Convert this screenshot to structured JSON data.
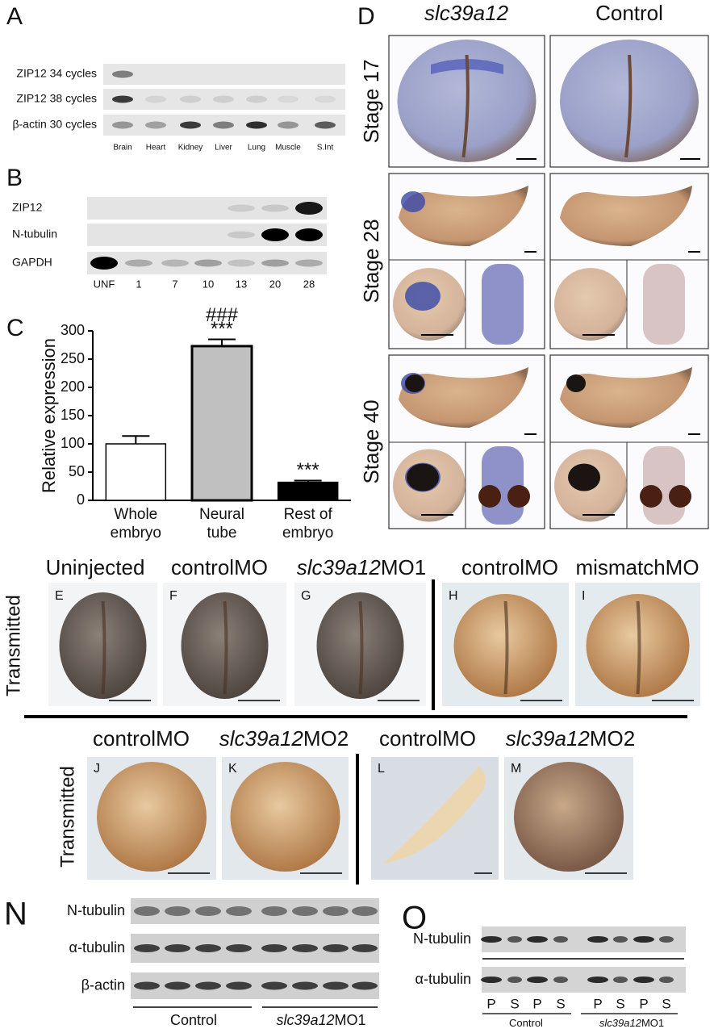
{
  "panel_a": {
    "label": "A",
    "rows": [
      "ZIP12 34 cycles",
      "ZIP12 38 cycles",
      "β-actin 30 cycles"
    ],
    "lanes": [
      "Brain",
      "Heart",
      "Kidney",
      "Liver",
      "Lung",
      "Muscle",
      "S.Int"
    ]
  },
  "panel_b": {
    "label": "B",
    "rows": [
      "ZIP12",
      "N-tubulin",
      "GAPDH"
    ],
    "lanes": [
      "UNF",
      "1",
      "7",
      "10",
      "13",
      "20",
      "28"
    ]
  },
  "chart_data": {
    "type": "bar",
    "label": "C",
    "ylabel": "Relative expression",
    "categories": [
      "Whole embryo",
      "Neural tube",
      "Rest of embryo"
    ],
    "values": [
      100,
      273,
      32
    ],
    "errors": [
      14,
      12,
      3
    ],
    "colors": [
      "#ffffff",
      "#c0c0c0",
      "#000000"
    ],
    "annotations": [
      null,
      [
        "###",
        "***"
      ],
      [
        "***"
      ]
    ],
    "ylim": [
      0,
      300
    ],
    "yticks": [
      0,
      50,
      100,
      150,
      200,
      250,
      300
    ]
  },
  "panel_d": {
    "label": "D",
    "columns": [
      {
        "italic": "slc39a12"
      },
      {
        "text": "Control"
      }
    ],
    "rows": [
      "Stage 17",
      "Stage 28",
      "Stage 40"
    ]
  },
  "panel_e_i": {
    "row_label": "Transmitted",
    "panels": [
      "E",
      "F",
      "G",
      "H",
      "I"
    ],
    "headers": [
      {
        "text": "Uninjected"
      },
      {
        "text": "controlMO"
      },
      {
        "italic": "slc39a12",
        "text": "MO1"
      },
      {
        "text": "controlMO"
      },
      {
        "text": "mismatchMO"
      }
    ]
  },
  "panel_j_m": {
    "row_label": "Transmitted",
    "panels": [
      "J",
      "K",
      "L",
      "M"
    ],
    "headers": [
      {
        "text": "controlMO"
      },
      {
        "italic": "slc39a12",
        "text": "MO2"
      },
      {
        "text": "controlMO"
      },
      {
        "italic": "slc39a12",
        "text": "MO2"
      }
    ]
  },
  "panel_n": {
    "label": "N",
    "rows": [
      "N-tubulin",
      "α-tubulin",
      "β-actin"
    ],
    "groups": [
      {
        "text": "Control"
      },
      {
        "italic": "slc39a12",
        "text": "MO1"
      }
    ]
  },
  "panel_o": {
    "label": "O",
    "rows": [
      "N-tubulin",
      "α-tubulin"
    ],
    "lanes": [
      "P",
      "S",
      "P",
      "S",
      "P",
      "S",
      "P",
      "S"
    ],
    "groups": [
      {
        "text": "Control"
      },
      {
        "italic": "slc39a12",
        "text": "MO1"
      }
    ]
  }
}
